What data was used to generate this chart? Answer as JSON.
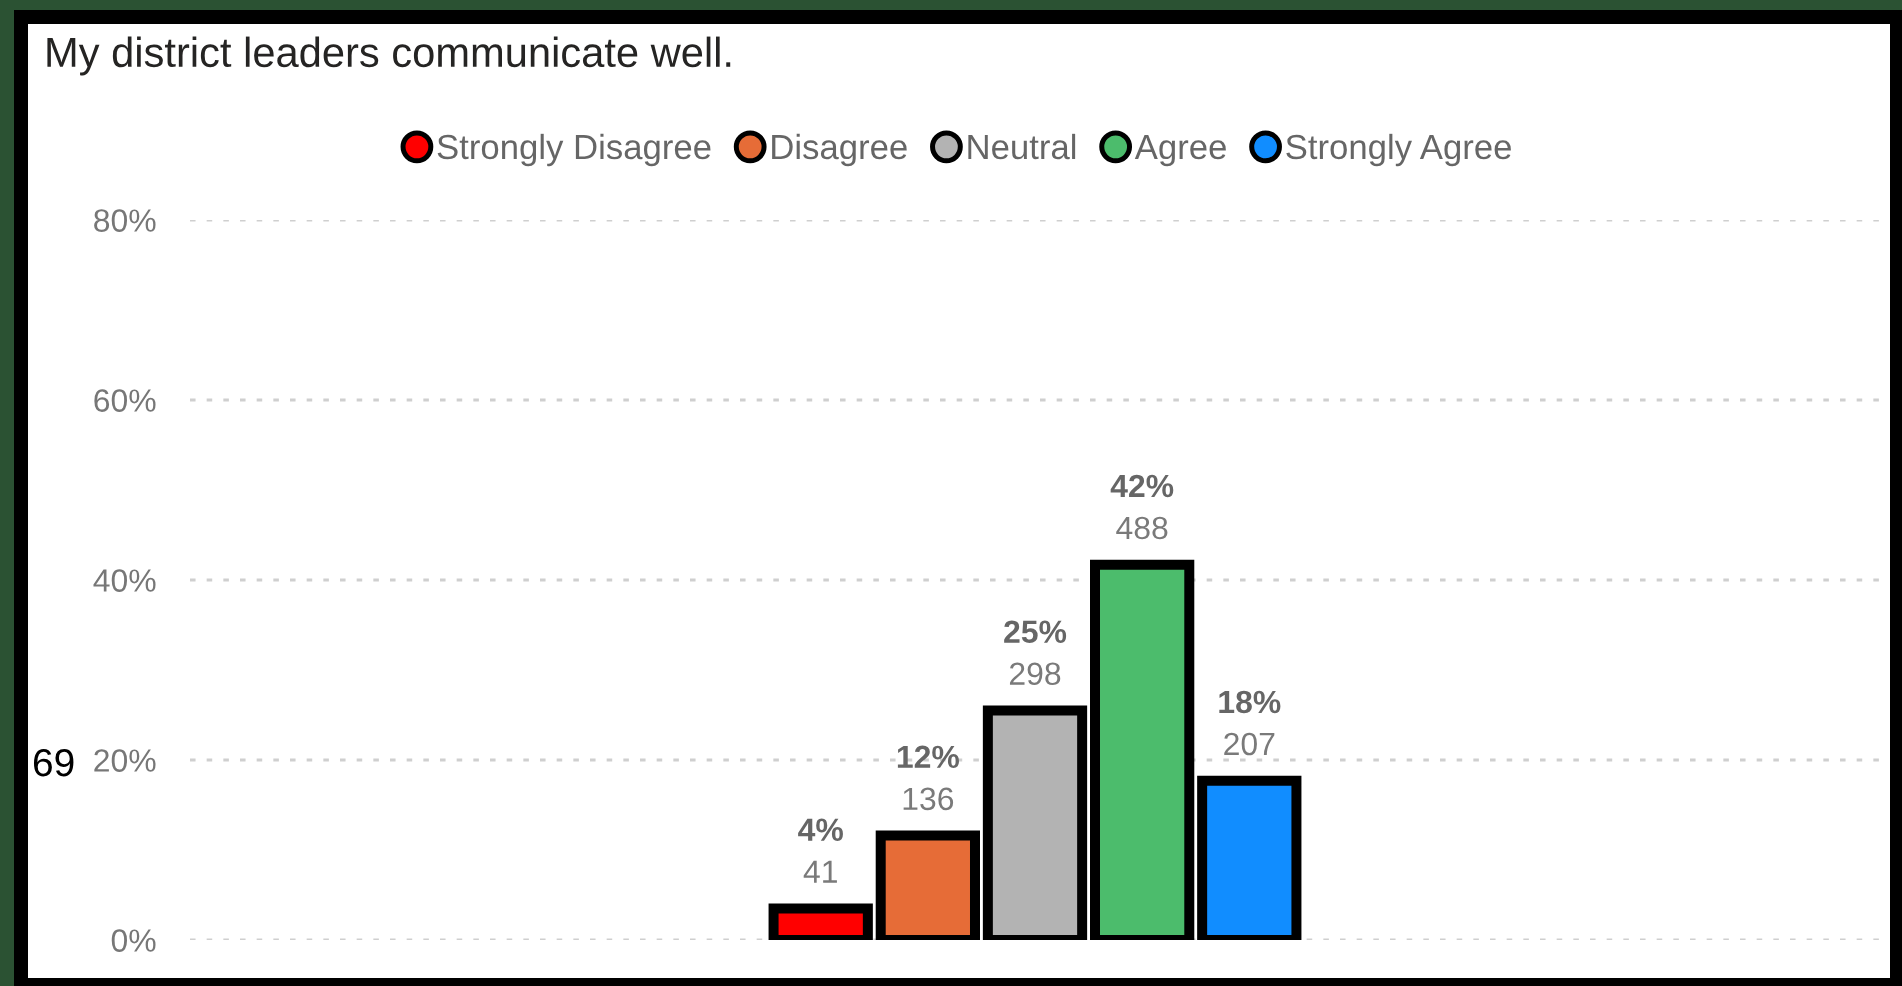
{
  "chart_data": {
    "type": "bar",
    "title": "My district leaders communicate well.",
    "categories": [
      null
    ],
    "series": [
      {
        "name": "Strongly Disagree",
        "color": "#ff0000",
        "values": [
          3.5
        ],
        "value_labels": [
          "4%\n41"
        ]
      },
      {
        "name": "Disagree",
        "color": "#e66c37",
        "values": [
          11.6
        ],
        "value_labels": [
          "12%\n136"
        ]
      },
      {
        "name": "Neutral",
        "color": "#b3b3b3",
        "values": [
          25.5
        ],
        "value_labels": [
          "25%\n298"
        ]
      },
      {
        "name": "Agree",
        "color": "#4cbc6c",
        "values": [
          41.7
        ],
        "value_labels": [
          "42%\n488"
        ]
      },
      {
        "name": "Strongly Agree",
        "color": "#118dff",
        "values": [
          17.7
        ],
        "value_labels": [
          "18%\n207"
        ]
      }
    ],
    "ylim": [
      0,
      80
    ],
    "yticks": [
      {
        "value": 0,
        "label": "0%"
      },
      {
        "value": 20,
        "label": "20%"
      },
      {
        "value": 40,
        "label": "40%"
      },
      {
        "value": 60,
        "label": "60%"
      },
      {
        "value": 80,
        "label": "80%"
      }
    ],
    "grid": "y",
    "legend": "top",
    "marker": "circle",
    "tick_labels": "y",
    "annotations": [
      "69"
    ]
  }
}
